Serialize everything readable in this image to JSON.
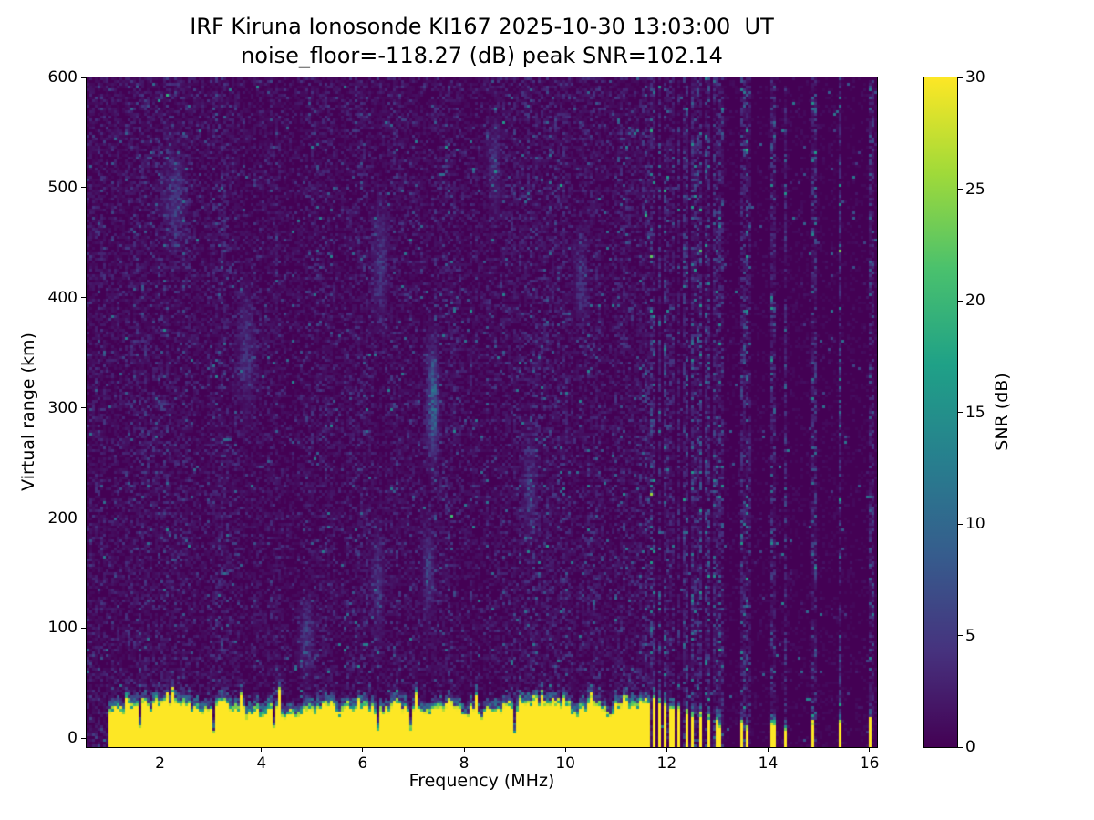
{
  "chart_data": {
    "type": "heatmap",
    "title": "IRF Kiruna Ionosonde KI167 2025-10-30 13:03:00  UT",
    "subtitle": "noise_floor=-118.27 (dB) peak SNR=102.14",
    "station": "IRF Kiruna Ionosonde KI167",
    "timestamp_ut": "2025-10-30 13:03:00",
    "noise_floor_db": -118.27,
    "peak_snr_db": 102.14,
    "xlabel": "Frequency (MHz)",
    "ylabel": "Virtual range (km)",
    "xlim": [
      0.55,
      16.15
    ],
    "ylim": [
      -8,
      600
    ],
    "x_ticks": [
      2,
      4,
      6,
      8,
      10,
      12,
      14,
      16
    ],
    "y_ticks": [
      0,
      100,
      200,
      300,
      400,
      500,
      600
    ],
    "grid": false,
    "colorbar": {
      "label": "SNR (dB)",
      "min": 0,
      "max": 30,
      "ticks": [
        0,
        5,
        10,
        15,
        20,
        25,
        30
      ],
      "colormap": "viridis",
      "stops": [
        "#440154",
        "#46327e",
        "#365c8d",
        "#277f8e",
        "#1fa187",
        "#4ac16d",
        "#a0da39",
        "#fde725"
      ]
    },
    "background_noise_db_mean": 1.3,
    "ground_echo_band": {
      "freq_start_mhz": 1.0,
      "freq_end_mhz": 11.68,
      "range_bottom_km": -8,
      "range_top_km_min": 20,
      "range_top_km_max": 48,
      "snr_db": 30
    },
    "plumes": [
      {
        "f_mhz": 1.35,
        "top_km": 44
      },
      {
        "f_mhz": 2.25,
        "top_km": 46
      },
      {
        "f_mhz": 3.6,
        "top_km": 42
      },
      {
        "f_mhz": 4.35,
        "top_km": 48
      },
      {
        "f_mhz": 5.9,
        "top_km": 40
      },
      {
        "f_mhz": 7.05,
        "top_km": 44
      },
      {
        "f_mhz": 8.25,
        "top_km": 42
      },
      {
        "f_mhz": 9.55,
        "top_km": 46
      },
      {
        "f_mhz": 10.5,
        "top_km": 42
      },
      {
        "f_mhz": 11.2,
        "top_km": 40
      }
    ],
    "notches_mhz": [
      1.62,
      3.08,
      4.25,
      6.32,
      6.95,
      9.02
    ],
    "interference_bursts": [
      {
        "f_mhz": 11.74,
        "top_km": 40
      },
      {
        "f_mhz": 11.86,
        "top_km": 36
      },
      {
        "f_mhz": 11.98,
        "top_km": 34
      },
      {
        "f_mhz": 12.1,
        "top_km": 30
      },
      {
        "f_mhz": 12.24,
        "top_km": 28
      },
      {
        "f_mhz": 12.38,
        "top_km": 26
      },
      {
        "f_mhz": 12.52,
        "top_km": 24
      },
      {
        "f_mhz": 12.66,
        "top_km": 24
      },
      {
        "f_mhz": 12.82,
        "top_km": 22
      },
      {
        "f_mhz": 12.98,
        "top_km": 20
      },
      {
        "f_mhz": 13.06,
        "top_km": 14
      },
      {
        "f_mhz": 13.5,
        "top_km": 18
      },
      {
        "f_mhz": 13.6,
        "top_km": 12
      },
      {
        "f_mhz": 14.1,
        "top_km": 16
      },
      {
        "f_mhz": 14.34,
        "top_km": 12
      },
      {
        "f_mhz": 14.9,
        "top_km": 16
      },
      {
        "f_mhz": 15.42,
        "top_km": 18
      },
      {
        "f_mhz": 16.02,
        "top_km": 20
      }
    ],
    "noise_smudges": [
      {
        "f_mhz": 7.38,
        "km": 305,
        "df_mhz": 0.1,
        "dkm": 45,
        "amp_db": 11
      },
      {
        "f_mhz": 7.3,
        "km": 150,
        "df_mhz": 0.09,
        "dkm": 35,
        "amp_db": 6
      },
      {
        "f_mhz": 6.35,
        "km": 430,
        "df_mhz": 0.12,
        "dkm": 45,
        "amp_db": 5
      },
      {
        "f_mhz": 6.3,
        "km": 140,
        "df_mhz": 0.1,
        "dkm": 40,
        "amp_db": 5
      },
      {
        "f_mhz": 2.3,
        "km": 490,
        "df_mhz": 0.18,
        "dkm": 40,
        "amp_db": 4
      },
      {
        "f_mhz": 3.7,
        "km": 350,
        "df_mhz": 0.15,
        "dkm": 50,
        "amp_db": 4
      },
      {
        "f_mhz": 9.3,
        "km": 230,
        "df_mhz": 0.12,
        "dkm": 40,
        "amp_db": 4
      },
      {
        "f_mhz": 10.3,
        "km": 420,
        "df_mhz": 0.1,
        "dkm": 35,
        "amp_db": 4
      },
      {
        "f_mhz": 4.9,
        "km": 90,
        "df_mhz": 0.12,
        "dkm": 30,
        "amp_db": 5
      },
      {
        "f_mhz": 8.6,
        "km": 520,
        "df_mhz": 0.12,
        "dkm": 35,
        "amp_db": 4
      }
    ]
  }
}
